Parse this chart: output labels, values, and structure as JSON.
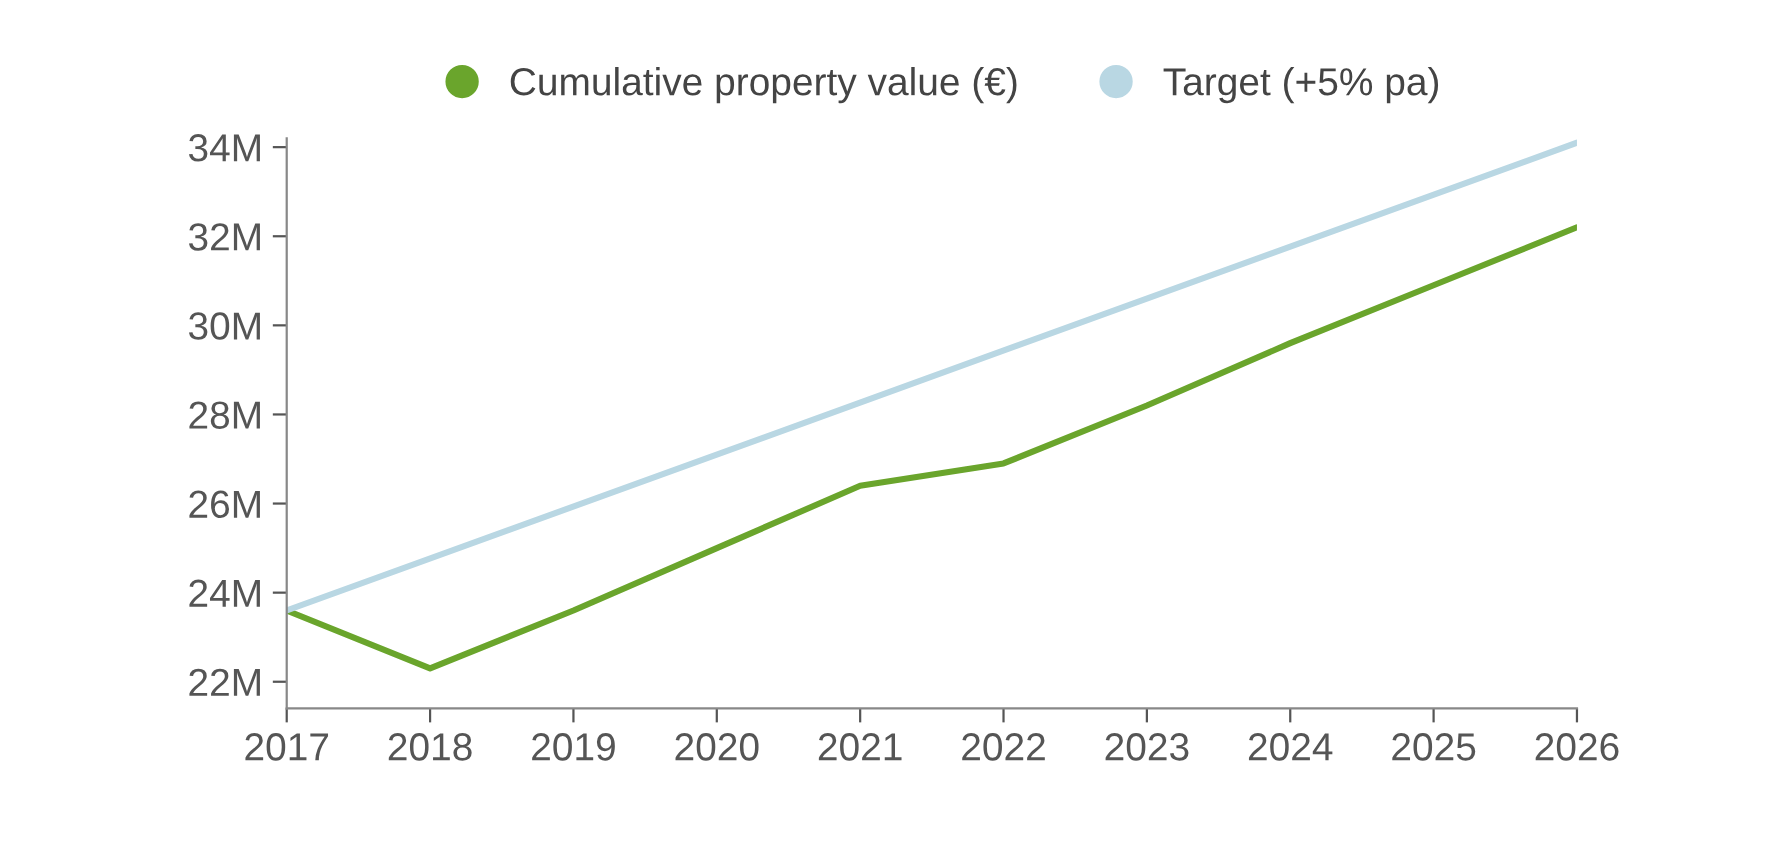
{
  "chart_data": {
    "type": "line",
    "series": [
      {
        "name": "Cumulative property value (€)",
        "color": "#6aa52c",
        "x": [
          2017,
          2018,
          2019,
          2020,
          2021,
          2022,
          2023,
          2024,
          2025,
          2026
        ],
        "values": [
          23.6,
          22.3,
          23.6,
          25.0,
          26.4,
          26.9,
          28.2,
          29.6,
          30.9,
          32.2
        ]
      },
      {
        "name": "Target (+5% pa)",
        "color": "#b9d7e3",
        "x": [
          2017,
          2026
        ],
        "values": [
          23.6,
          34.1
        ]
      }
    ],
    "xlim": [
      2017,
      2026
    ],
    "xticks": [
      2017,
      2018,
      2019,
      2020,
      2021,
      2022,
      2023,
      2024,
      2025,
      2026
    ],
    "ylim": [
      21.4,
      34.2
    ],
    "yticks": [
      {
        "value": 22,
        "label": "22M"
      },
      {
        "value": 24,
        "label": "24M"
      },
      {
        "value": 26,
        "label": "26M"
      },
      {
        "value": 28,
        "label": "28M"
      },
      {
        "value": 30,
        "label": "30M"
      },
      {
        "value": 32,
        "label": "32M"
      },
      {
        "value": 34,
        "label": "34M"
      }
    ],
    "grid": false,
    "legend": "top",
    "marker": "none",
    "line_style": "solid"
  }
}
